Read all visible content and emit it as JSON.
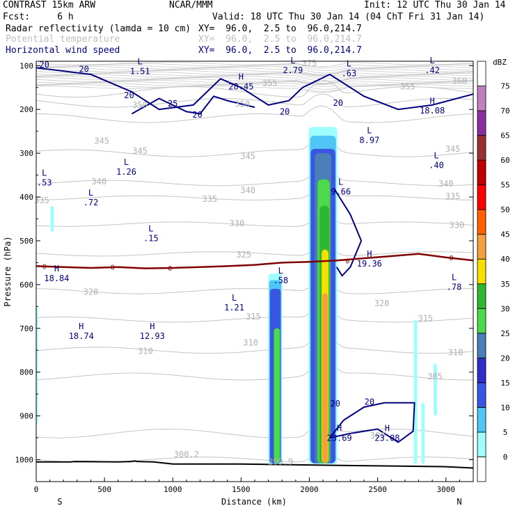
{
  "header": {
    "model": "CONTRAST 15km ARW",
    "org": "NCAR/MMM",
    "init": "Init: 12 UTC Thu 30 Jan 14",
    "fcst": "Fcst:     6 h",
    "valid": "Valid: 18 UTC Thu 30 Jan 14 (04 ChT Fri 31 Jan 14)",
    "fields": [
      {
        "label": "Radar reflectivity (lamda = 10 cm)",
        "xy": "XY=  96.0,  2.5 to  96.0,214.7",
        "color": "#000000"
      },
      {
        "label": "Potential temperature",
        "xy": "XY=  96.0,  2.5 to  96.0,214.7",
        "color": "#bdbdbd"
      },
      {
        "label": "Horizontal wind speed",
        "xy": "XY=  96.0,  2.5 to  96.0,214.7",
        "color": "#000080"
      }
    ]
  },
  "chart_data": {
    "type": "cross-section",
    "xlabel": "Distance (km)",
    "ylabel": "Pressure (hPa)",
    "xlim": [
      0,
      3200
    ],
    "ylim": [
      1050,
      90
    ],
    "x_ticks": [
      0,
      500,
      1000,
      1500,
      2000,
      2500,
      3000
    ],
    "y_ticks": [
      100,
      200,
      300,
      400,
      500,
      600,
      700,
      800,
      900,
      1000
    ],
    "x_end_labels": {
      "left": "S",
      "right": "N"
    },
    "colorbar": {
      "unit": "dBZ",
      "levels": [
        0,
        5,
        10,
        15,
        20,
        25,
        30,
        35,
        40,
        45,
        50,
        55,
        60,
        65,
        70,
        75
      ],
      "colors": [
        "#ffffff",
        "#9ffdfd",
        "#4fc6f5",
        "#3a55e0",
        "#2f2fc8",
        "#4a7fb8",
        "#4cd94c",
        "#2fb82f",
        "#f5e000",
        "#f5a040",
        "#ff6000",
        "#ff0000",
        "#c00000",
        "#9a3030",
        "#8a2ea0",
        "#c080c0"
      ]
    },
    "theta_contours": {
      "color": "#bdbdbd",
      "labels": [
        {
          "text": "375",
          "x": 2000,
          "p": 95
        },
        {
          "text": "355",
          "x": 1710,
          "p": 140
        },
        {
          "text": "360",
          "x": 3100,
          "p": 135
        },
        {
          "text": "355",
          "x": 2720,
          "p": 148
        },
        {
          "text": "350",
          "x": 760,
          "p": 190
        },
        {
          "text": "350",
          "x": 1510,
          "p": 188
        },
        {
          "text": "345",
          "x": 480,
          "p": 272
        },
        {
          "text": "345",
          "x": 760,
          "p": 295
        },
        {
          "text": "345",
          "x": 1550,
          "p": 307
        },
        {
          "text": "345",
          "x": 3050,
          "p": 290
        },
        {
          "text": "340",
          "x": 460,
          "p": 365
        },
        {
          "text": "340",
          "x": 1550,
          "p": 385
        },
        {
          "text": "340",
          "x": 3000,
          "p": 370
        },
        {
          "text": "335",
          "x": 40,
          "p": 408
        },
        {
          "text": "335",
          "x": 1270,
          "p": 405
        },
        {
          "text": "335",
          "x": 3050,
          "p": 398
        },
        {
          "text": "330",
          "x": 1470,
          "p": 460
        },
        {
          "text": "330",
          "x": 3080,
          "p": 464
        },
        {
          "text": "325",
          "x": 1520,
          "p": 532
        },
        {
          "text": "320",
          "x": 400,
          "p": 617
        },
        {
          "text": "320",
          "x": 2530,
          "p": 643
        },
        {
          "text": "315",
          "x": 1590,
          "p": 673
        },
        {
          "text": "315",
          "x": 2850,
          "p": 677
        },
        {
          "text": "310",
          "x": 800,
          "p": 752
        },
        {
          "text": "310",
          "x": 1570,
          "p": 733
        },
        {
          "text": "310",
          "x": 3070,
          "p": 755
        },
        {
          "text": "305",
          "x": 2920,
          "p": 810
        },
        {
          "text": "300",
          "x": 2500,
          "p": 945
        },
        {
          "text": "300.2",
          "x": 1100,
          "p": 988
        },
        {
          "text": "299.9",
          "x": 1790,
          "p": 1005
        }
      ]
    },
    "zero_line": {
      "color": "#800000",
      "label": "0",
      "x": [
        0,
        200,
        400,
        600,
        800,
        1000,
        1200,
        1400,
        1600,
        1800,
        2000,
        2200,
        2400,
        2600,
        2800,
        3000,
        3200
      ],
      "p": [
        558,
        560,
        562,
        560,
        563,
        562,
        560,
        558,
        555,
        550,
        548,
        545,
        540,
        535,
        530,
        538,
        545
      ]
    },
    "wind_contours": {
      "color": "#000080",
      "labels": [
        {
          "text": "20",
          "x": 60,
          "p": 98
        },
        {
          "text": "20",
          "x": 350,
          "p": 108
        },
        {
          "text": "20",
          "x": 680,
          "p": 168
        },
        {
          "text": "25",
          "x": 1000,
          "p": 187
        },
        {
          "text": "20",
          "x": 1180,
          "p": 212
        },
        {
          "text": "20",
          "x": 1820,
          "p": 205
        },
        {
          "text": "20",
          "x": 2210,
          "p": 185
        },
        {
          "text": "20",
          "x": 2190,
          "p": 872
        },
        {
          "text": "20",
          "x": 2440,
          "p": 868
        }
      ]
    },
    "markers": [
      {
        "type": "L",
        "value": "1.51",
        "x": 760,
        "p": 100
      },
      {
        "type": "L",
        "value": "2.79",
        "x": 1880,
        "p": 98
      },
      {
        "type": "L",
        "value": ".63",
        "x": 2290,
        "p": 105
      },
      {
        "type": "L",
        "value": ".42",
        "x": 2900,
        "p": 98
      },
      {
        "type": "H",
        "value": "28.45",
        "x": 1500,
        "p": 135
      },
      {
        "type": "H",
        "value": "18.08",
        "x": 2900,
        "p": 190
      },
      {
        "type": "L",
        "value": "8.97",
        "x": 2440,
        "p": 258
      },
      {
        "type": "L",
        "value": ".40",
        "x": 2930,
        "p": 315
      },
      {
        "type": "L",
        "value": "1.26",
        "x": 660,
        "p": 330
      },
      {
        "type": "L",
        "value": ".53",
        "x": 60,
        "p": 355
      },
      {
        "type": "L",
        "value": ".72",
        "x": 400,
        "p": 400
      },
      {
        "type": "L",
        "value": "9.66",
        "x": 2230,
        "p": 375
      },
      {
        "type": "L",
        "value": ".15",
        "x": 840,
        "p": 482
      },
      {
        "type": "H",
        "value": "19.36",
        "x": 2440,
        "p": 540
      },
      {
        "type": "H",
        "value": "18.84",
        "x": 150,
        "p": 573
      },
      {
        "type": "L",
        "value": ".58",
        "x": 1790,
        "p": 578
      },
      {
        "type": "L",
        "value": ".78",
        "x": 3060,
        "p": 593
      },
      {
        "type": "L",
        "value": "1.21",
        "x": 1450,
        "p": 640
      },
      {
        "type": "H",
        "value": "18.74",
        "x": 330,
        "p": 705
      },
      {
        "type": "H",
        "value": "12.93",
        "x": 850,
        "p": 705
      },
      {
        "type": "H",
        "value": "23.69",
        "x": 2220,
        "p": 938
      },
      {
        "type": "H",
        "value": "23.08",
        "x": 2570,
        "p": 938
      }
    ],
    "terrain_p": [
      1005,
      1005,
      1004,
      1005,
      1004,
      1003,
      1004,
      1005,
      1010,
      1010,
      1012,
      1014,
      1016,
      1019
    ],
    "terrain_x": [
      0,
      250,
      280,
      600,
      700,
      720,
      740,
      860,
      1000,
      1500,
      2000,
      2500,
      3000,
      3200
    ]
  }
}
